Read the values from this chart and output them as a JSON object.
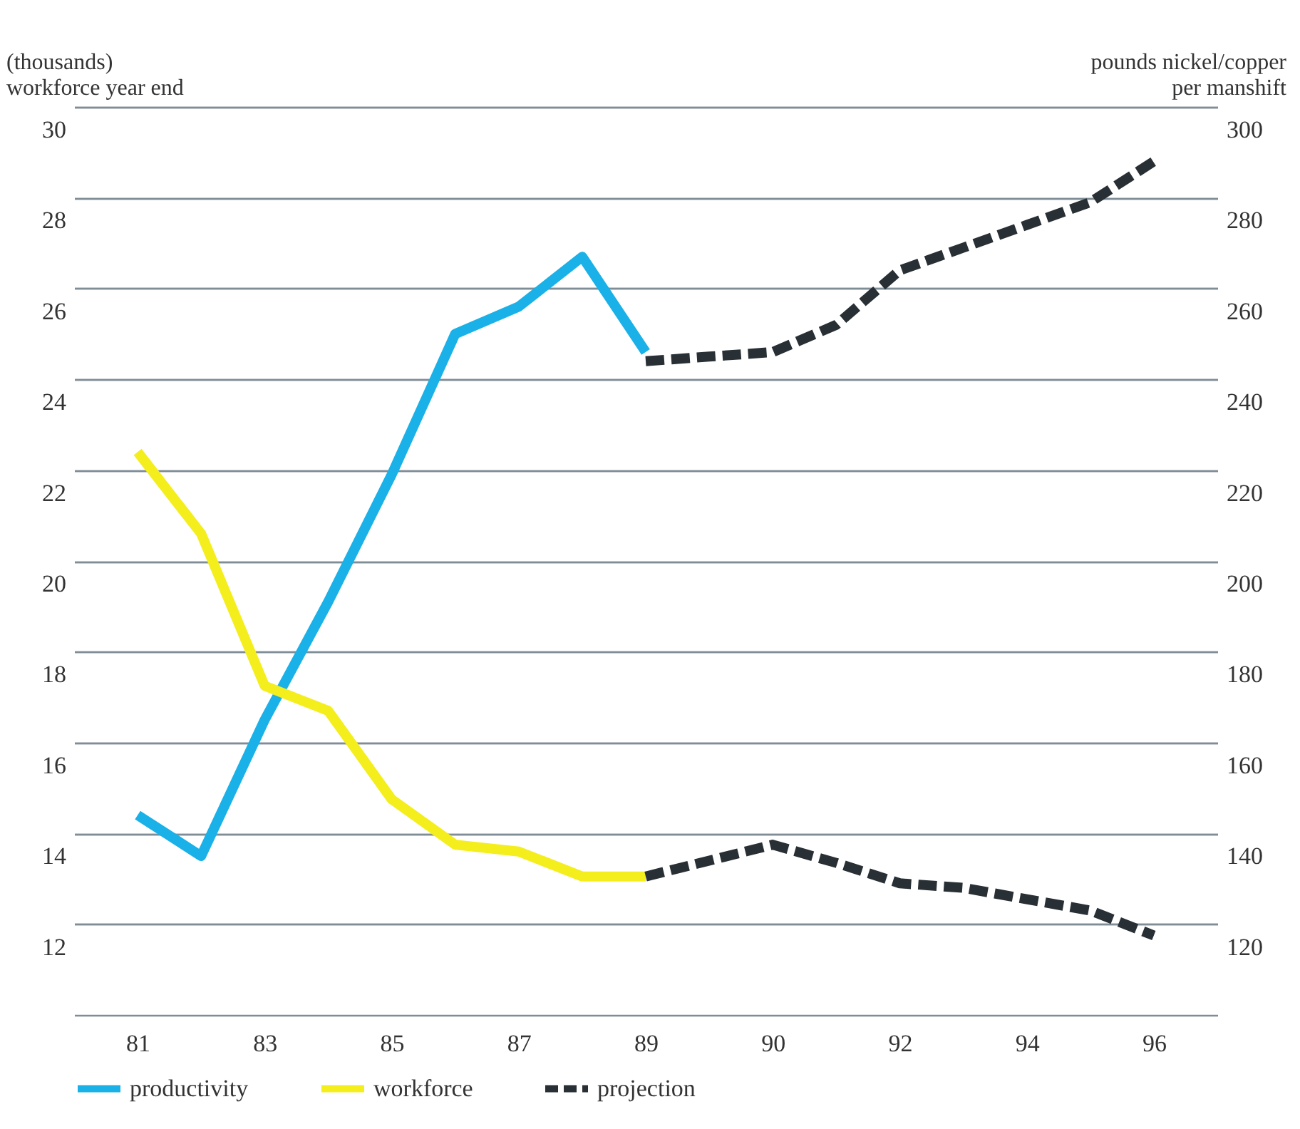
{
  "chart_data": {
    "type": "line",
    "categories": [
      "81",
      null,
      "83",
      null,
      "85",
      null,
      "87",
      null,
      "89",
      null,
      "90",
      null,
      "92",
      null,
      "94",
      null,
      "96"
    ],
    "series": [
      {
        "name": "productivity",
        "color": "#19b1e8",
        "axis": "y2",
        "values": [
          144,
          135,
          165,
          191,
          219,
          250,
          256,
          267,
          246,
          null,
          null,
          null,
          null,
          null,
          null,
          null,
          null
        ]
      },
      {
        "name": "workforce",
        "color": "#f4ee1c",
        "values": [
          22.4,
          20.6,
          17.25,
          16.7,
          14.75,
          13.75,
          13.6,
          13.05,
          13.05,
          null,
          null,
          null,
          null,
          null,
          null,
          null,
          null
        ]
      },
      {
        "name": "projection",
        "color": "#283035",
        "axis": "y2",
        "line_style": "dashed",
        "values": [
          null,
          null,
          null,
          null,
          null,
          null,
          null,
          null,
          244,
          245,
          246,
          252,
          264,
          269,
          274,
          279,
          288
        ]
      },
      {
        "color": "#283035",
        "line_style": "dashed",
        "values": [
          null,
          null,
          null,
          null,
          null,
          null,
          null,
          null,
          13.05,
          13.4,
          13.75,
          13.35,
          12.9,
          12.8,
          12.55,
          12.3,
          11.75
        ]
      }
    ],
    "ylabel": "(thousands)\nworkforce year end",
    "y2label": "pounds nickel/copper\nper manshift",
    "ylim": [
      10,
      30
    ],
    "yticks": [
      12,
      14,
      16,
      18,
      20,
      22,
      24,
      26,
      28,
      30
    ],
    "y2lim": [
      100,
      300
    ],
    "y2ticks": [
      120,
      140,
      160,
      180,
      200,
      220,
      240,
      260,
      280,
      300
    ],
    "grid": "y",
    "legend": "bottom",
    "marker": "none",
    "line_style": "solid"
  }
}
